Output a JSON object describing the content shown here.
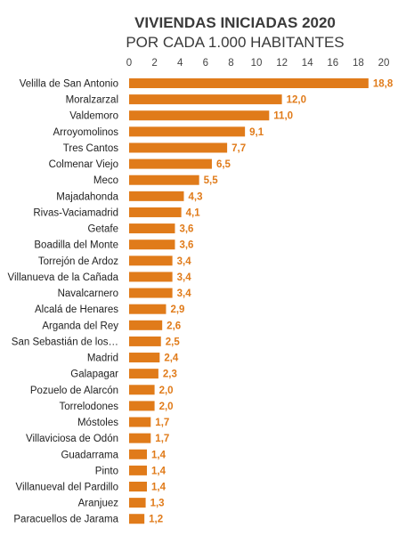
{
  "chart_data": {
    "type": "bar",
    "orientation": "horizontal",
    "title": "VIVIENDAS INICIADAS 2020",
    "subtitle": "POR CADA 1.000 HABITANTES",
    "categories": [
      "Velilla de San Antonio",
      "Moralzarzal",
      "Valdemoro",
      "Arroyomolinos",
      "Tres Cantos",
      "Colmenar Viejo",
      "Meco",
      "Majadahonda",
      "Rivas-Vaciamadrid",
      "Getafe",
      "Boadilla del Monte",
      "Torrejón de Ardoz",
      "Villanueva de la Cañada",
      "Navalcarnero",
      "Alcalá de Henares",
      "Arganda del Rey",
      "San Sebastián de los…",
      "Madrid",
      "Galapagar",
      "Pozuelo de Alarcón",
      "Torrelodones",
      "Móstoles",
      "Villaviciosa de Odón",
      "Guadarrama",
      "Pinto",
      "Villanueval del Pardillo",
      "Aranjuez",
      "Paracuellos de Jarama"
    ],
    "values": [
      18.8,
      12.0,
      11.0,
      9.1,
      7.7,
      6.5,
      5.5,
      4.3,
      4.1,
      3.6,
      3.6,
      3.4,
      3.4,
      3.4,
      2.9,
      2.6,
      2.5,
      2.4,
      2.3,
      2.0,
      2.0,
      1.7,
      1.7,
      1.4,
      1.4,
      1.4,
      1.3,
      1.2
    ],
    "value_labels": [
      "18,8",
      "12,0",
      "11,0",
      "9,1",
      "7,7",
      "6,5",
      "5,5",
      "4,3",
      "4,1",
      "3,6",
      "3,6",
      "3,4",
      "3,4",
      "3,4",
      "2,9",
      "2,6",
      "2,5",
      "2,4",
      "2,3",
      "2,0",
      "2,0",
      "1,7",
      "1,7",
      "1,4",
      "1,4",
      "1,4",
      "1,3",
      "1,2"
    ],
    "xlim": [
      0,
      20
    ],
    "x_ticks": [
      0,
      2,
      4,
      6,
      8,
      10,
      12,
      14,
      16,
      18,
      20
    ],
    "x_axis_position": "top",
    "grid": false,
    "legend": "none",
    "bar_color": "#e07b1a",
    "label_color": "#e07b1a"
  }
}
